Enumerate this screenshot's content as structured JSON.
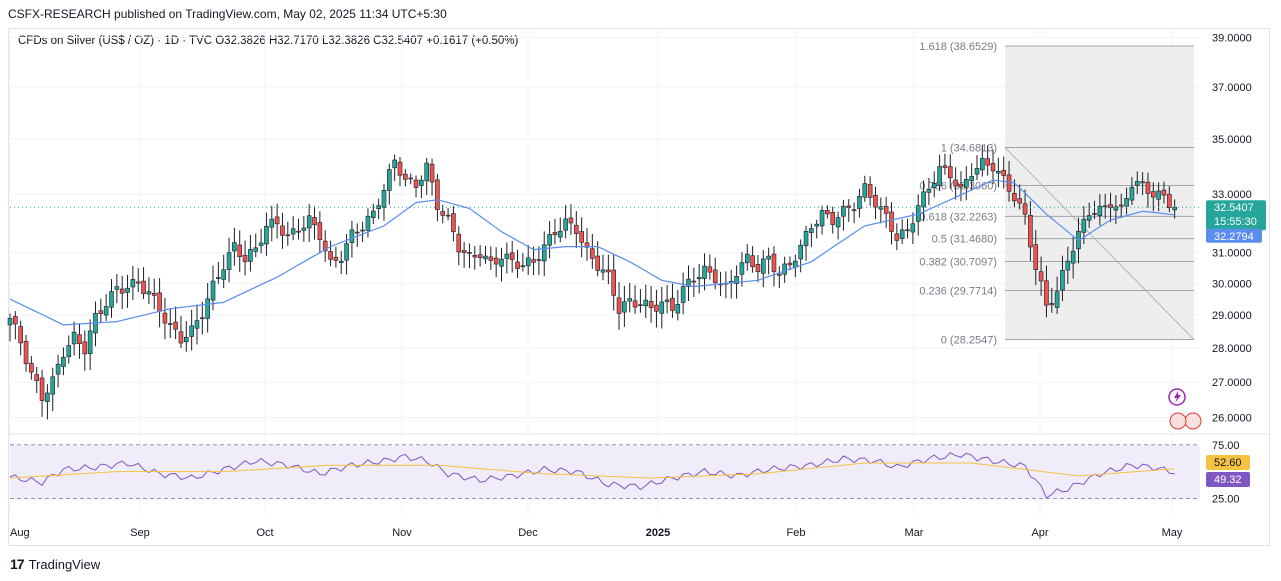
{
  "publisher_line": "CSFX-RESEARCH published on TradingView.com, May 02, 2025 11:34 UTC+5:30",
  "legend": "CFDs on Silver (US$ / OZ) · 1D · TVC  O32.3826  H32.7170  L32.3826  C32.5407  +0.1617 (+0.50%)",
  "footer": {
    "logo": "17",
    "brand": "TradingView"
  },
  "colors": {
    "up": "#26a69a",
    "down": "#ef5350",
    "ma": "#5b8def",
    "rsi": "#7e57c2",
    "rsi_ma": "#f5c242",
    "fib": "#a0a4ab"
  },
  "chart_data": {
    "type": "candlestick",
    "price_axis": {
      "ticks": [
        "39.0000",
        "37.0000",
        "35.0000",
        "33.0000",
        "31.0000",
        "30.0000",
        "29.0000",
        "28.0000",
        "27.0000",
        "26.0000"
      ],
      "tick_values": [
        39,
        37,
        35,
        33,
        31,
        30,
        29,
        28,
        27,
        26
      ]
    },
    "time_axis": {
      "labels": [
        "Aug",
        "Sep",
        "Oct",
        "Nov",
        "Dec",
        "2025",
        "Feb",
        "Mar",
        "Apr",
        "May"
      ]
    },
    "last_price": {
      "value": "32.5407",
      "countdown": "15:55:30"
    },
    "ma_value": "32.2794",
    "fib_levels": [
      {
        "ratio": "1.618",
        "price": "38.6529",
        "v": 38.6529
      },
      {
        "ratio": "1",
        "price": "34.6813",
        "v": 34.6813
      },
      {
        "ratio": "0.786",
        "price": "33.3060",
        "v": 33.306
      },
      {
        "ratio": "0.618",
        "price": "32.2263",
        "v": 32.2263
      },
      {
        "ratio": "0.5",
        "price": "31.4680",
        "v": 31.468
      },
      {
        "ratio": "0.382",
        "price": "30.7097",
        "v": 30.7097
      },
      {
        "ratio": "0.236",
        "price": "29.7714",
        "v": 29.7714
      },
      {
        "ratio": "0",
        "price": "28.2547",
        "v": 28.2547
      }
    ],
    "close_path": [
      [
        0,
        28.9
      ],
      [
        2,
        28.2
      ],
      [
        4,
        27.2
      ],
      [
        6,
        26.6
      ],
      [
        8,
        27.0
      ],
      [
        10,
        27.9
      ],
      [
        12,
        28.3
      ],
      [
        14,
        28.0
      ],
      [
        16,
        28.9
      ],
      [
        18,
        29.4
      ],
      [
        20,
        29.8
      ],
      [
        22,
        29.9
      ],
      [
        24,
        30.0
      ],
      [
        26,
        29.7
      ],
      [
        28,
        29.2
      ],
      [
        30,
        28.6
      ],
      [
        32,
        28.3
      ],
      [
        34,
        28.5
      ],
      [
        36,
        29.1
      ],
      [
        38,
        29.9
      ],
      [
        40,
        30.6
      ],
      [
        42,
        31.2
      ],
      [
        44,
        30.8
      ],
      [
        46,
        31.1
      ],
      [
        48,
        31.9
      ],
      [
        50,
        32.0
      ],
      [
        52,
        31.5
      ],
      [
        54,
        31.8
      ],
      [
        56,
        32.1
      ],
      [
        58,
        31.6
      ],
      [
        60,
        30.6
      ],
      [
        62,
        30.9
      ],
      [
        64,
        31.6
      ],
      [
        66,
        31.9
      ],
      [
        68,
        32.3
      ],
      [
        70,
        33.2
      ],
      [
        72,
        34.2
      ],
      [
        74,
        33.5
      ],
      [
        76,
        33.3
      ],
      [
        78,
        34.0
      ],
      [
        80,
        32.6
      ],
      [
        82,
        32.1
      ],
      [
        84,
        31.2
      ],
      [
        86,
        30.8
      ],
      [
        88,
        31.0
      ],
      [
        90,
        30.6
      ],
      [
        92,
        30.9
      ],
      [
        94,
        30.7
      ],
      [
        96,
        30.6
      ],
      [
        98,
        30.7
      ],
      [
        100,
        31.2
      ],
      [
        102,
        31.7
      ],
      [
        104,
        32.0
      ],
      [
        106,
        31.8
      ],
      [
        108,
        31.0
      ],
      [
        110,
        30.6
      ],
      [
        112,
        30.2
      ],
      [
        114,
        29.2
      ],
      [
        116,
        29.4
      ],
      [
        118,
        29.4
      ],
      [
        120,
        29.2
      ],
      [
        122,
        29.4
      ],
      [
        124,
        29.2
      ],
      [
        126,
        29.8
      ],
      [
        128,
        30.2
      ],
      [
        130,
        30.4
      ],
      [
        132,
        30.2
      ],
      [
        134,
        29.8
      ],
      [
        136,
        30.4
      ],
      [
        138,
        30.8
      ],
      [
        140,
        30.5
      ],
      [
        142,
        30.8
      ],
      [
        144,
        30.3
      ],
      [
        146,
        30.6
      ],
      [
        148,
        31.2
      ],
      [
        150,
        31.9
      ],
      [
        152,
        32.3
      ],
      [
        154,
        32.1
      ],
      [
        156,
        32.4
      ],
      [
        158,
        32.6
      ],
      [
        160,
        33.2
      ],
      [
        162,
        32.7
      ],
      [
        164,
        32.2
      ],
      [
        166,
        31.5
      ],
      [
        168,
        31.7
      ],
      [
        170,
        32.6
      ],
      [
        172,
        33.2
      ],
      [
        174,
        33.9
      ],
      [
        176,
        33.7
      ],
      [
        178,
        33.1
      ],
      [
        180,
        33.8
      ],
      [
        182,
        34.1
      ],
      [
        184,
        34.0
      ],
      [
        186,
        33.5
      ],
      [
        188,
        32.9
      ],
      [
        190,
        32.2
      ],
      [
        192,
        30.5
      ],
      [
        194,
        29.3
      ],
      [
        196,
        29.7
      ],
      [
        198,
        30.8
      ],
      [
        200,
        31.6
      ],
      [
        202,
        32.4
      ],
      [
        204,
        32.4
      ],
      [
        206,
        32.7
      ],
      [
        208,
        32.4
      ],
      [
        210,
        33.4
      ],
      [
        212,
        33.3
      ],
      [
        214,
        33.0
      ],
      [
        216,
        32.9
      ],
      [
        218,
        32.5
      ]
    ],
    "ma_path": [
      [
        0,
        29.5
      ],
      [
        10,
        28.7
      ],
      [
        20,
        28.8
      ],
      [
        30,
        29.2
      ],
      [
        40,
        29.4
      ],
      [
        50,
        30.2
      ],
      [
        60,
        31.2
      ],
      [
        70,
        31.9
      ],
      [
        76,
        32.7
      ],
      [
        80,
        32.8
      ],
      [
        86,
        32.5
      ],
      [
        92,
        31.7
      ],
      [
        98,
        31.1
      ],
      [
        104,
        31.2
      ],
      [
        110,
        31.2
      ],
      [
        116,
        30.7
      ],
      [
        122,
        30.1
      ],
      [
        128,
        29.9
      ],
      [
        134,
        30.0
      ],
      [
        140,
        30.1
      ],
      [
        150,
        30.7
      ],
      [
        160,
        31.9
      ],
      [
        170,
        32.3
      ],
      [
        176,
        32.8
      ],
      [
        184,
        33.5
      ],
      [
        188,
        33.4
      ],
      [
        194,
        32.3
      ],
      [
        200,
        31.4
      ],
      [
        206,
        32.1
      ],
      [
        212,
        32.4
      ],
      [
        218,
        32.28
      ]
    ],
    "rsi": {
      "levels": [
        "75.00",
        "25.00"
      ],
      "level_values": [
        75,
        25
      ],
      "value": "49.32",
      "ma_value": "52.60",
      "path": [
        [
          0,
          45
        ],
        [
          6,
          40
        ],
        [
          10,
          52
        ],
        [
          16,
          54
        ],
        [
          22,
          58
        ],
        [
          28,
          48
        ],
        [
          34,
          44
        ],
        [
          40,
          52
        ],
        [
          46,
          60
        ],
        [
          52,
          56
        ],
        [
          58,
          48
        ],
        [
          64,
          56
        ],
        [
          70,
          60
        ],
        [
          74,
          64
        ],
        [
          78,
          60
        ],
        [
          82,
          48
        ],
        [
          88,
          42
        ],
        [
          94,
          46
        ],
        [
          100,
          52
        ],
        [
          106,
          50
        ],
        [
          112,
          38
        ],
        [
          118,
          36
        ],
        [
          124,
          44
        ],
        [
          130,
          50
        ],
        [
          136,
          46
        ],
        [
          142,
          52
        ],
        [
          150,
          56
        ],
        [
          156,
          62
        ],
        [
          162,
          60
        ],
        [
          166,
          54
        ],
        [
          172,
          62
        ],
        [
          178,
          66
        ],
        [
          184,
          60
        ],
        [
          190,
          55
        ],
        [
          194,
          28
        ],
        [
          198,
          34
        ],
        [
          204,
          48
        ],
        [
          210,
          56
        ],
        [
          214,
          54
        ],
        [
          218,
          49.32
        ]
      ],
      "ma_path": [
        [
          0,
          44
        ],
        [
          20,
          50
        ],
        [
          40,
          50
        ],
        [
          60,
          56
        ],
        [
          80,
          56
        ],
        [
          100,
          48
        ],
        [
          120,
          44
        ],
        [
          140,
          48
        ],
        [
          160,
          58
        ],
        [
          180,
          58
        ],
        [
          200,
          46
        ],
        [
          218,
          52.6
        ]
      ]
    }
  }
}
